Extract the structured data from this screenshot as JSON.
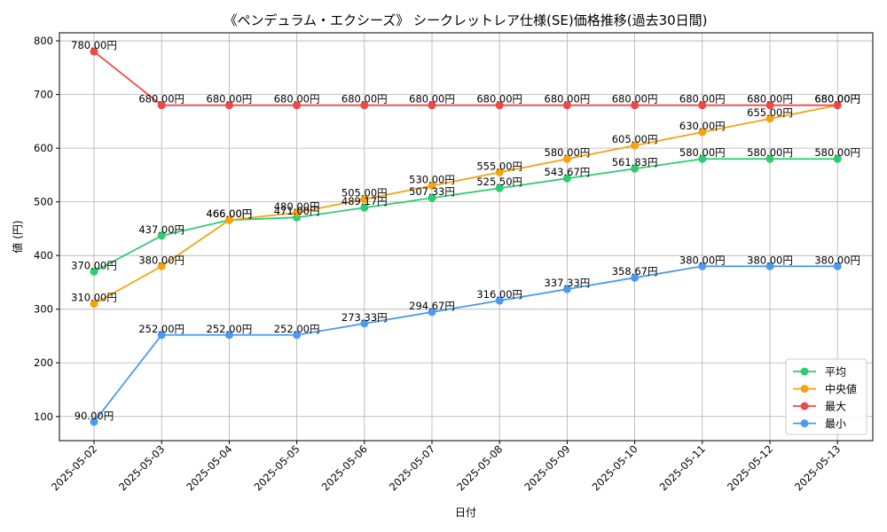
{
  "chart_data": {
    "type": "line",
    "title": "《ペンデュラム・エクシーズ》 シークレットレア仕様(SE)価格推移(過去30日間)",
    "xlabel": "日付",
    "ylabel": "値 (円)",
    "ylim": [
      55,
      815
    ],
    "yticks": [
      100,
      200,
      300,
      400,
      500,
      600,
      700,
      800
    ],
    "grid": true,
    "legend_position": "lower-right",
    "label_suffix": "円",
    "categories": [
      "2025-05-02",
      "2025-05-03",
      "2025-05-04",
      "2025-05-05",
      "2025-05-06",
      "2025-05-07",
      "2025-05-08",
      "2025-05-09",
      "2025-05-10",
      "2025-05-11",
      "2025-05-12",
      "2025-05-13"
    ],
    "series": [
      {
        "name": "平均",
        "color": "#2ecc71",
        "values": [
          370.0,
          437.0,
          466.0,
          471.0,
          489.17,
          507.33,
          525.5,
          543.67,
          561.83,
          580.0,
          580.0,
          580.0
        ]
      },
      {
        "name": "中央値",
        "color": "#f5a30f",
        "values": [
          310.0,
          380.0,
          466.0,
          480.0,
          505.0,
          530.0,
          555.0,
          580.0,
          605.0,
          630.0,
          655.0,
          680.0
        ]
      },
      {
        "name": "最大",
        "color": "#f04848",
        "values": [
          780.0,
          680.0,
          680.0,
          680.0,
          680.0,
          680.0,
          680.0,
          680.0,
          680.0,
          680.0,
          680.0,
          680.0
        ]
      },
      {
        "name": "最小",
        "color": "#4a9af0",
        "values": [
          90.0,
          252.0,
          252.0,
          252.0,
          273.33,
          294.67,
          316.0,
          337.33,
          358.67,
          380.0,
          380.0,
          380.0
        ]
      }
    ]
  }
}
